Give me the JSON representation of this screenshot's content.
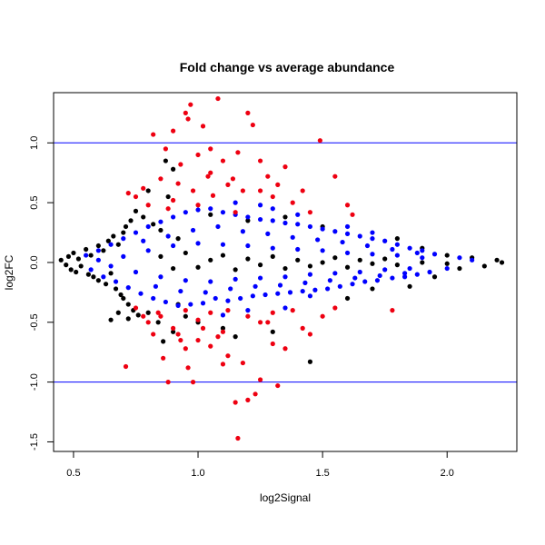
{
  "chart_data": {
    "type": "scatter",
    "title": "Fold change vs average abundance",
    "xlabel": "log2Signal",
    "ylabel": "log2FC",
    "xlim": [
      0.42,
      2.28
    ],
    "ylim": [
      -1.58,
      1.42
    ],
    "x_ticks": [
      {
        "value": 0.5,
        "label": "0.5"
      },
      {
        "value": 1.0,
        "label": "1.0"
      },
      {
        "value": 1.5,
        "label": "1.5"
      },
      {
        "value": 2.0,
        "label": "2.0"
      }
    ],
    "y_ticks": [
      {
        "value": -1.5,
        "label": "-1.5"
      },
      {
        "value": -1.0,
        "label": "-1.0"
      },
      {
        "value": -0.5,
        "label": "-0.5"
      },
      {
        "value": 0.0,
        "label": "0.0"
      },
      {
        "value": 0.5,
        "label": "0.5"
      },
      {
        "value": 1.0,
        "label": "1.0"
      }
    ],
    "reference_lines": [
      {
        "axis": "y",
        "value": 1.0,
        "color": "#0000ff"
      },
      {
        "axis": "y",
        "value": -1.0,
        "color": "#0000ff"
      }
    ],
    "series": [
      {
        "color": "#000000",
        "points": [
          [
            0.45,
            0.02
          ],
          [
            0.47,
            -0.02
          ],
          [
            0.48,
            0.05
          ],
          [
            0.49,
            -0.06
          ],
          [
            0.5,
            0.08
          ],
          [
            0.51,
            -0.08
          ],
          [
            0.52,
            0.03
          ],
          [
            0.53,
            -0.03
          ],
          [
            0.55,
            0.11
          ],
          [
            0.56,
            -0.1
          ],
          [
            0.57,
            0.06
          ],
          [
            0.58,
            -0.12
          ],
          [
            0.6,
            0.14
          ],
          [
            0.6,
            -0.15
          ],
          [
            0.62,
            0.1
          ],
          [
            0.63,
            -0.18
          ],
          [
            0.64,
            0.18
          ],
          [
            0.65,
            -0.09
          ],
          [
            0.66,
            0.22
          ],
          [
            0.67,
            -0.22
          ],
          [
            0.68,
            0.15
          ],
          [
            0.69,
            -0.27
          ],
          [
            0.7,
            0.25
          ],
          [
            0.7,
            -0.3
          ],
          [
            0.71,
            0.3
          ],
          [
            0.72,
            -0.35
          ],
          [
            0.73,
            0.35
          ],
          [
            0.74,
            -0.4
          ],
          [
            0.75,
            0.43
          ],
          [
            0.76,
            -0.44
          ],
          [
            0.78,
            0.38
          ],
          [
            0.8,
            -0.42
          ],
          [
            0.82,
            0.32
          ],
          [
            0.84,
            -0.5
          ],
          [
            0.85,
            0.27
          ],
          [
            0.86,
            -0.66
          ],
          [
            0.88,
            0.55
          ],
          [
            0.9,
            -0.58
          ],
          [
            0.92,
            0.2
          ],
          [
            0.95,
            -0.45
          ],
          [
            0.65,
            -0.48
          ],
          [
            0.68,
            -0.42
          ],
          [
            0.72,
            -0.47
          ],
          [
            0.8,
            0.6
          ],
          [
            0.87,
            0.85
          ],
          [
            0.9,
            0.78
          ],
          [
            0.92,
            -0.35
          ],
          [
            1.0,
            -0.5
          ],
          [
            1.05,
            0.4
          ],
          [
            1.1,
            -0.55
          ],
          [
            1.15,
            -0.62
          ],
          [
            1.2,
            0.35
          ],
          [
            1.3,
            -0.58
          ],
          [
            1.35,
            0.38
          ],
          [
            1.45,
            -0.83
          ],
          [
            1.5,
            0.3
          ],
          [
            1.6,
            -0.3
          ],
          [
            1.7,
            -0.22
          ],
          [
            1.8,
            0.2
          ],
          [
            1.85,
            -0.2
          ],
          [
            1.9,
            0.12
          ],
          [
            1.95,
            -0.12
          ],
          [
            2.0,
            0.06
          ],
          [
            2.05,
            -0.05
          ],
          [
            2.1,
            0.04
          ],
          [
            2.15,
            -0.03
          ],
          [
            2.2,
            0.02
          ],
          [
            2.22,
            0.0
          ],
          [
            0.85,
            0.05
          ],
          [
            0.9,
            -0.05
          ],
          [
            0.95,
            0.08
          ],
          [
            1.0,
            -0.04
          ],
          [
            1.05,
            0.02
          ],
          [
            1.1,
            0.06
          ],
          [
            1.15,
            -0.06
          ],
          [
            1.2,
            0.03
          ],
          [
            1.25,
            -0.02
          ],
          [
            1.3,
            0.05
          ],
          [
            1.35,
            -0.05
          ],
          [
            1.4,
            0.02
          ],
          [
            1.45,
            -0.03
          ],
          [
            1.5,
            0.0
          ],
          [
            1.55,
            0.04
          ],
          [
            1.6,
            -0.04
          ],
          [
            1.65,
            0.02
          ],
          [
            1.7,
            -0.01
          ],
          [
            1.75,
            0.03
          ],
          [
            1.8,
            -0.02
          ],
          [
            1.9,
            0.0
          ],
          [
            2.0,
            -0.01
          ]
        ]
      },
      {
        "color": "#0000ff",
        "points": [
          [
            0.55,
            0.06
          ],
          [
            0.57,
            -0.06
          ],
          [
            0.6,
            0.1
          ],
          [
            0.62,
            -0.12
          ],
          [
            0.65,
            0.15
          ],
          [
            0.67,
            -0.16
          ],
          [
            0.7,
            0.2
          ],
          [
            0.72,
            -0.21
          ],
          [
            0.75,
            0.25
          ],
          [
            0.77,
            -0.26
          ],
          [
            0.8,
            0.3
          ],
          [
            0.82,
            -0.3
          ],
          [
            0.85,
            0.34
          ],
          [
            0.87,
            -0.33
          ],
          [
            0.9,
            0.38
          ],
          [
            0.92,
            -0.36
          ],
          [
            0.95,
            0.42
          ],
          [
            0.97,
            -0.35
          ],
          [
            1.0,
            0.44
          ],
          [
            1.02,
            -0.34
          ],
          [
            1.05,
            0.45
          ],
          [
            1.07,
            -0.3
          ],
          [
            1.1,
            0.42
          ],
          [
            1.12,
            -0.32
          ],
          [
            1.15,
            0.4
          ],
          [
            1.17,
            -0.3
          ],
          [
            1.2,
            0.38
          ],
          [
            1.22,
            -0.28
          ],
          [
            1.25,
            0.36
          ],
          [
            1.27,
            -0.27
          ],
          [
            1.3,
            0.35
          ],
          [
            1.32,
            -0.26
          ],
          [
            1.35,
            0.33
          ],
          [
            1.37,
            -0.25
          ],
          [
            1.4,
            0.32
          ],
          [
            1.42,
            -0.24
          ],
          [
            1.45,
            0.3
          ],
          [
            1.47,
            -0.23
          ],
          [
            1.5,
            0.28
          ],
          [
            1.52,
            -0.22
          ],
          [
            1.55,
            0.26
          ],
          [
            1.57,
            -0.2
          ],
          [
            1.6,
            0.24
          ],
          [
            1.62,
            -0.18
          ],
          [
            1.65,
            0.22
          ],
          [
            1.67,
            -0.16
          ],
          [
            1.7,
            0.2
          ],
          [
            1.72,
            -0.15
          ],
          [
            1.75,
            0.18
          ],
          [
            1.78,
            -0.13
          ],
          [
            1.8,
            0.15
          ],
          [
            1.83,
            -0.12
          ],
          [
            1.85,
            0.12
          ],
          [
            1.88,
            -0.1
          ],
          [
            1.9,
            0.1
          ],
          [
            1.93,
            -0.08
          ],
          [
            1.95,
            0.07
          ],
          [
            2.0,
            -0.05
          ],
          [
            2.05,
            0.04
          ],
          [
            2.1,
            0.02
          ],
          [
            0.6,
            0.02
          ],
          [
            0.65,
            -0.03
          ],
          [
            0.7,
            0.05
          ],
          [
            0.75,
            -0.08
          ],
          [
            0.8,
            0.1
          ],
          [
            0.85,
            -0.12
          ],
          [
            0.9,
            0.14
          ],
          [
            0.95,
            -0.15
          ],
          [
            1.0,
            0.16
          ],
          [
            1.05,
            -0.16
          ],
          [
            1.1,
            0.15
          ],
          [
            1.15,
            -0.14
          ],
          [
            1.2,
            0.14
          ],
          [
            1.25,
            -0.13
          ],
          [
            1.3,
            0.12
          ],
          [
            1.35,
            -0.12
          ],
          [
            1.4,
            0.11
          ],
          [
            1.45,
            -0.1
          ],
          [
            1.5,
            0.1
          ],
          [
            1.55,
            -0.09
          ],
          [
            1.6,
            0.08
          ],
          [
            1.65,
            -0.08
          ],
          [
            1.7,
            0.07
          ],
          [
            1.75,
            -0.06
          ],
          [
            1.8,
            0.06
          ],
          [
            1.85,
            -0.05
          ],
          [
            1.9,
            0.04
          ],
          [
            0.88,
            0.22
          ],
          [
            0.93,
            -0.24
          ],
          [
            0.98,
            0.27
          ],
          [
            1.03,
            -0.25
          ],
          [
            1.08,
            0.3
          ],
          [
            1.13,
            -0.22
          ],
          [
            1.18,
            0.26
          ],
          [
            1.23,
            -0.2
          ],
          [
            1.28,
            0.24
          ],
          [
            1.33,
            -0.19
          ],
          [
            1.38,
            0.21
          ],
          [
            1.43,
            -0.17
          ],
          [
            1.48,
            0.19
          ],
          [
            1.53,
            -0.15
          ],
          [
            1.58,
            0.17
          ],
          [
            1.63,
            -0.13
          ],
          [
            1.68,
            0.14
          ],
          [
            1.73,
            -0.11
          ],
          [
            1.78,
            0.11
          ],
          [
            1.83,
            -0.09
          ],
          [
            1.88,
            0.08
          ],
          [
            0.78,
            0.18
          ],
          [
            0.83,
            -0.2
          ],
          [
            1.4,
            0.4
          ],
          [
            1.45,
            -0.28
          ],
          [
            1.6,
            0.3
          ],
          [
            1.7,
            0.25
          ],
          [
            1.15,
            0.5
          ],
          [
            1.2,
            -0.4
          ],
          [
            1.3,
            0.45
          ],
          [
            1.35,
            -0.38
          ],
          [
            1.25,
            0.48
          ],
          [
            1.1,
            -0.44
          ]
        ]
      },
      {
        "color": "#ee0011",
        "points": [
          [
            0.72,
            0.58
          ],
          [
            0.75,
            0.55
          ],
          [
            0.78,
            0.62
          ],
          [
            0.8,
            0.48
          ],
          [
            0.82,
            1.07
          ],
          [
            0.85,
            0.7
          ],
          [
            0.87,
            0.95
          ],
          [
            0.88,
            0.45
          ],
          [
            0.9,
            1.1
          ],
          [
            0.92,
            0.66
          ],
          [
            0.93,
            0.82
          ],
          [
            0.95,
            1.25
          ],
          [
            0.96,
            1.2
          ],
          [
            0.97,
            1.32
          ],
          [
            0.98,
            0.6
          ],
          [
            1.0,
            0.9
          ],
          [
            1.02,
            1.14
          ],
          [
            1.04,
            0.72
          ],
          [
            1.05,
            0.95
          ],
          [
            1.06,
            0.56
          ],
          [
            1.08,
            1.37
          ],
          [
            1.1,
            0.85
          ],
          [
            1.12,
            0.65
          ],
          [
            1.14,
            0.7
          ],
          [
            1.16,
            0.92
          ],
          [
            1.18,
            0.6
          ],
          [
            1.2,
            1.25
          ],
          [
            1.22,
            1.15
          ],
          [
            1.25,
            0.85
          ],
          [
            1.28,
            0.72
          ],
          [
            1.3,
            0.55
          ],
          [
            1.32,
            0.65
          ],
          [
            1.35,
            0.8
          ],
          [
            1.38,
            0.5
          ],
          [
            1.42,
            0.6
          ],
          [
            1.45,
            0.42
          ],
          [
            1.49,
            1.02
          ],
          [
            1.55,
            0.72
          ],
          [
            1.6,
            0.48
          ],
          [
            1.62,
            0.4
          ],
          [
            1.15,
            0.42
          ],
          [
            1.25,
            0.6
          ],
          [
            1.0,
            0.48
          ],
          [
            0.9,
            0.52
          ],
          [
            1.05,
            0.75
          ],
          [
            0.71,
            -0.87
          ],
          [
            0.75,
            -0.38
          ],
          [
            0.78,
            -0.45
          ],
          [
            0.8,
            -0.5
          ],
          [
            0.82,
            -0.6
          ],
          [
            0.84,
            -0.42
          ],
          [
            0.86,
            -0.8
          ],
          [
            0.88,
            -1.0
          ],
          [
            0.9,
            -0.55
          ],
          [
            0.93,
            -0.65
          ],
          [
            0.95,
            -0.72
          ],
          [
            0.96,
            -0.88
          ],
          [
            0.98,
            -1.0
          ],
          [
            1.0,
            -0.48
          ],
          [
            1.02,
            -0.55
          ],
          [
            1.05,
            -0.7
          ],
          [
            1.08,
            -0.62
          ],
          [
            1.1,
            -0.58
          ],
          [
            1.12,
            -0.78
          ],
          [
            1.15,
            -1.17
          ],
          [
            1.16,
            -1.47
          ],
          [
            1.18,
            -0.84
          ],
          [
            1.2,
            -1.15
          ],
          [
            1.23,
            -1.1
          ],
          [
            1.25,
            -0.98
          ],
          [
            1.28,
            -0.5
          ],
          [
            1.3,
            -0.68
          ],
          [
            1.32,
            -1.03
          ],
          [
            1.35,
            -0.72
          ],
          [
            1.38,
            -0.4
          ],
          [
            1.42,
            -0.55
          ],
          [
            1.45,
            -0.6
          ],
          [
            1.5,
            -0.45
          ],
          [
            1.55,
            -0.38
          ],
          [
            1.78,
            -0.4
          ],
          [
            0.95,
            -0.4
          ],
          [
            1.05,
            -0.42
          ],
          [
            1.12,
            -0.4
          ],
          [
            1.2,
            -0.45
          ],
          [
            1.25,
            -0.5
          ],
          [
            1.3,
            -0.42
          ],
          [
            0.85,
            -0.45
          ],
          [
            0.92,
            -0.6
          ],
          [
            1.0,
            -0.65
          ],
          [
            1.1,
            -0.85
          ]
        ]
      }
    ],
    "grid": false,
    "legend": "none"
  }
}
